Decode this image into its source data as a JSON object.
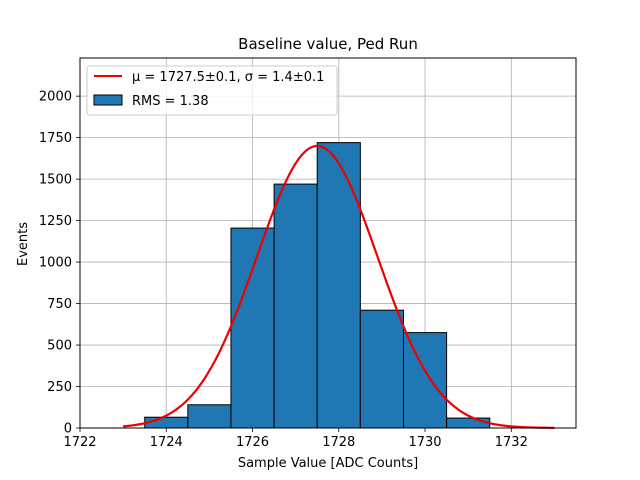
{
  "chart_data": {
    "type": "bar",
    "title": "Baseline value, Ped Run",
    "xlabel": "Sample Value [ADC Counts]",
    "ylabel": "Events",
    "xlim": [
      1722,
      1733.5
    ],
    "ylim": [
      0,
      2230
    ],
    "xticks": [
      1722,
      1724,
      1726,
      1728,
      1730,
      1732
    ],
    "yticks": [
      0,
      250,
      500,
      750,
      1000,
      1250,
      1500,
      1750,
      2000
    ],
    "grid": true,
    "legend_position": "upper-left",
    "histogram": {
      "name": "RMS = 1.38",
      "color": "#1f77b4",
      "edge_color": "#000000",
      "bins": [
        {
          "left": 1723.5,
          "right": 1724.5,
          "value": 65
        },
        {
          "left": 1724.5,
          "right": 1725.5,
          "value": 140
        },
        {
          "left": 1725.5,
          "right": 1726.5,
          "value": 1205
        },
        {
          "left": 1726.5,
          "right": 1727.5,
          "value": 1470
        },
        {
          "left": 1727.5,
          "right": 1728.5,
          "value": 1720
        },
        {
          "left": 1728.5,
          "right": 1729.5,
          "value": 710
        },
        {
          "left": 1729.5,
          "right": 1730.5,
          "value": 575
        },
        {
          "left": 1730.5,
          "right": 1731.5,
          "value": 60
        }
      ]
    },
    "fit": {
      "name": "μ = 1727.5±0.1, σ = 1.4±0.1",
      "color": "#ee0000",
      "mu": 1727.5,
      "sigma": 1.4,
      "amplitude": 1700,
      "x_range": [
        1723,
        1733
      ]
    }
  }
}
